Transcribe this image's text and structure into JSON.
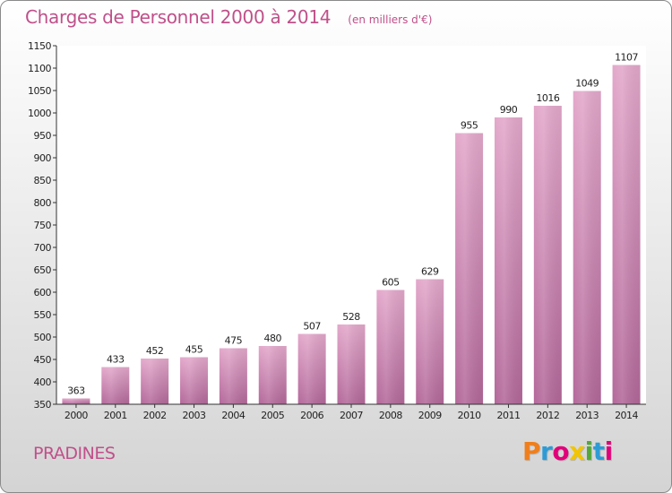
{
  "chart_data": {
    "type": "bar",
    "title": "Charges de Personnel 2000 à 2014",
    "subtitle": "(en milliers d'€)",
    "categories": [
      "2000",
      "2001",
      "2002",
      "2003",
      "2004",
      "2005",
      "2006",
      "2007",
      "2008",
      "2009",
      "2010",
      "2011",
      "2012",
      "2013",
      "2014"
    ],
    "values": [
      363,
      433,
      452,
      455,
      475,
      480,
      507,
      528,
      605,
      629,
      955,
      990,
      1016,
      1049,
      1107
    ],
    "ylim": [
      350,
      1150
    ],
    "yticks": [
      350,
      400,
      450,
      500,
      550,
      600,
      650,
      700,
      750,
      800,
      850,
      900,
      950,
      1000,
      1050,
      1100,
      1150
    ],
    "xlabel": "",
    "ylabel": "",
    "grid": false,
    "legend": "none",
    "bar_color": "#c8709e"
  },
  "footer": {
    "commune": "PRADINES",
    "brand": "Proxiti"
  },
  "brand_colors": [
    "#f07e1b",
    "#2d9bd6",
    "#e2007a",
    "#f2c500",
    "#52a83a",
    "#2d9bd6",
    "#e2007a"
  ]
}
